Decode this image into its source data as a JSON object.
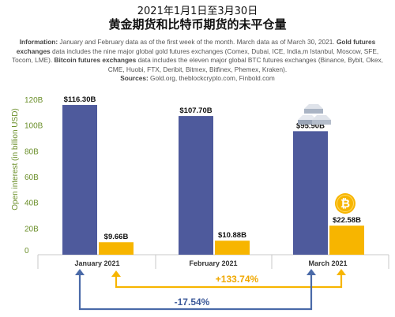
{
  "header": {
    "title_line1": "2021年1月1日至3月30日",
    "title_line2": "黄金期货和比特币期货的未平仓量"
  },
  "info": {
    "information_label": "Information:",
    "information_text": " January and February data as of the first week of the month. March data as of March 30, 2021. ",
    "gold_label": "Gold futures exchanges",
    "gold_text": " data includes the nine major global gold futures exchanges (Comex, Dubai, ICE, India,m Istanbul, Moscow, SFE, Tocom, LME). ",
    "btc_label": "Bitcoin futures exchanges",
    "btc_text": " data includes the eleven major global BTC futures exchanges (Binance, Bybit, Okex, CME, Huobi, FTX, Deribit, Bitmex, Bitfinex, Phemex, Kraken).",
    "sources_label": "Sources:",
    "sources_text": " Gold.org, theblockcrypto.com, Finbold.com"
  },
  "chart_data": {
    "type": "bar",
    "categories": [
      "January 2021",
      "February 2021",
      "March 2021"
    ],
    "series": [
      {
        "name": "Gold futures",
        "values": [
          116.3,
          107.7,
          95.9
        ],
        "labels": [
          "$116.30B",
          "$107.70B",
          "$95.90B"
        ],
        "color": "#4e5a9c"
      },
      {
        "name": "Bitcoin futures",
        "values": [
          9.66,
          10.88,
          22.58
        ],
        "labels": [
          "$9.66B",
          "$10.88B",
          "$22.58B"
        ],
        "color": "#f7b500"
      }
    ],
    "ylabel": "Open interest (in billion USD)",
    "yticks": [
      "0",
      "20B",
      "40B",
      "60B",
      "80B",
      "100B",
      "120B"
    ],
    "ylim": [
      0,
      120
    ],
    "grid": false,
    "annotations": {
      "gold_change": "-17.54%",
      "btc_change": "+133.74%"
    },
    "icons": [
      "gold-bars-icon",
      "bitcoin-icon"
    ],
    "colors": {
      "gold_bar": "#4e5a9c",
      "btc_bar": "#f7b500",
      "axis_text": "#6b8f2a",
      "arrow_blue": "#4a6aa8",
      "arrow_yellow": "#f7b500"
    }
  }
}
